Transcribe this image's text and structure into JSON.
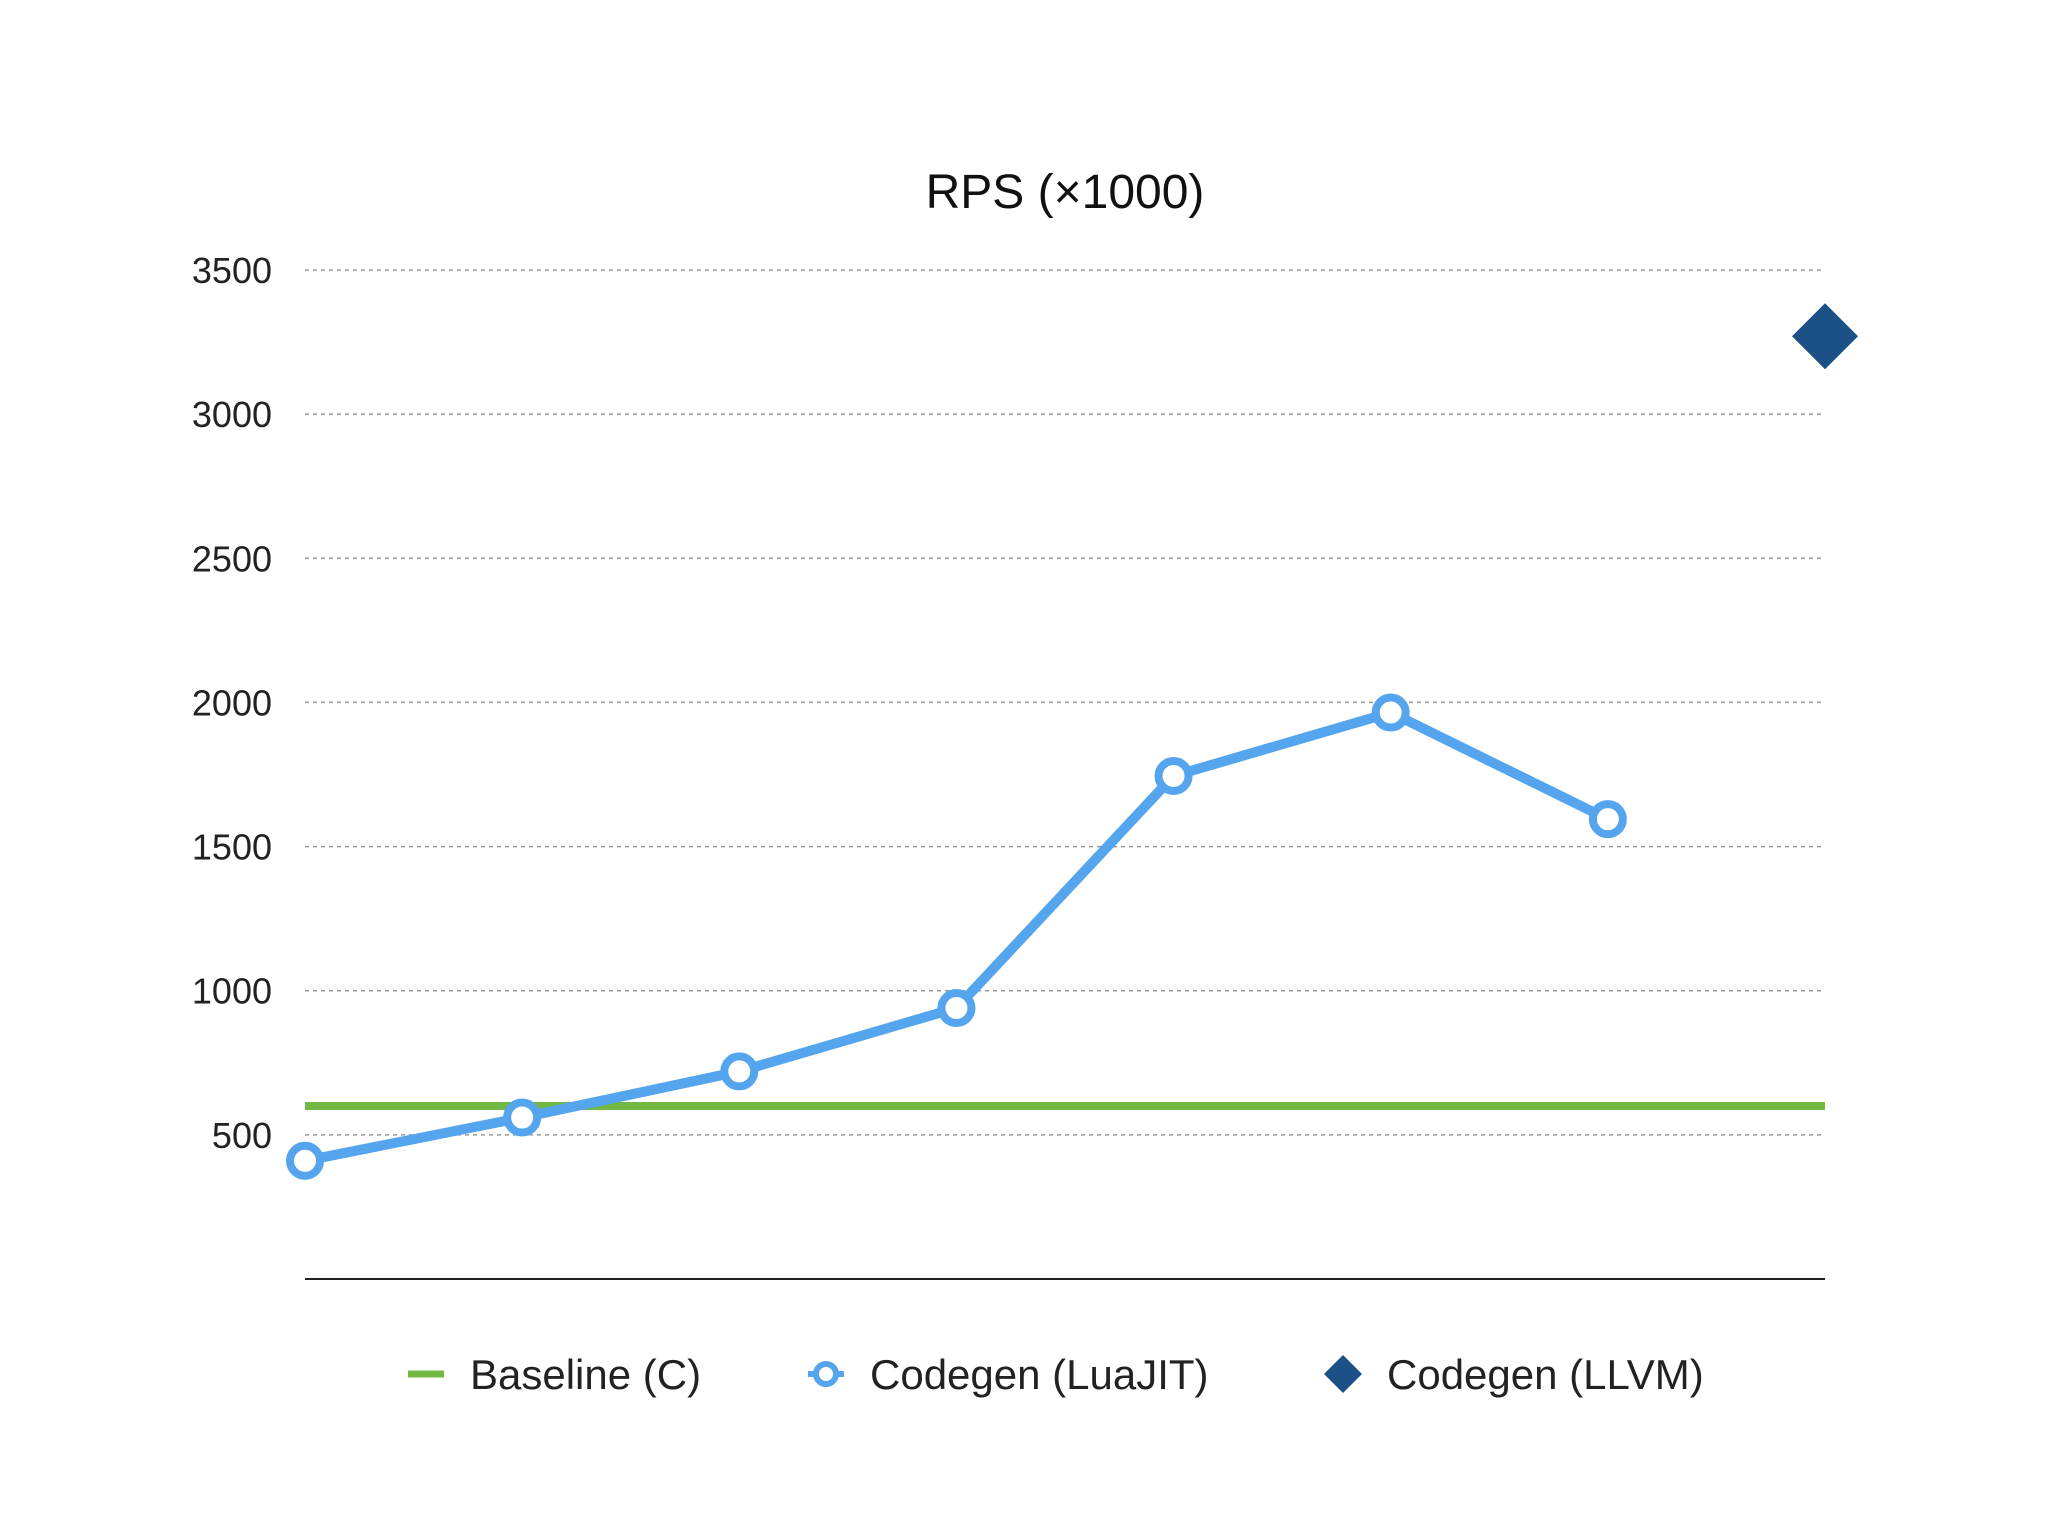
{
  "chart_data": {
    "type": "line",
    "title": "RPS (×1000)",
    "xlabel": "",
    "ylabel": "",
    "x": [
      1,
      2,
      3,
      4,
      5,
      6,
      7,
      8
    ],
    "xlim": [
      1,
      8
    ],
    "ylim": [
      0,
      3500
    ],
    "yticks": [
      500,
      1000,
      1500,
      2000,
      2500,
      3000,
      3500
    ],
    "grid": true,
    "legend_position": "bottom",
    "series": [
      {
        "name": "Baseline (C)",
        "kind": "line",
        "color": "#72b843",
        "values": [
          600,
          600,
          600,
          600,
          600,
          600,
          600,
          600
        ]
      },
      {
        "name": "Codegen (LuaJIT)",
        "kind": "line-marker",
        "color": "#55a5ee",
        "values": [
          410,
          560,
          720,
          940,
          1745,
          1965,
          1595,
          null
        ]
      },
      {
        "name": "Codegen (LLVM)",
        "kind": "marker",
        "color": "#1b5186",
        "values": [
          null,
          null,
          null,
          null,
          null,
          null,
          null,
          3270
        ]
      }
    ]
  }
}
